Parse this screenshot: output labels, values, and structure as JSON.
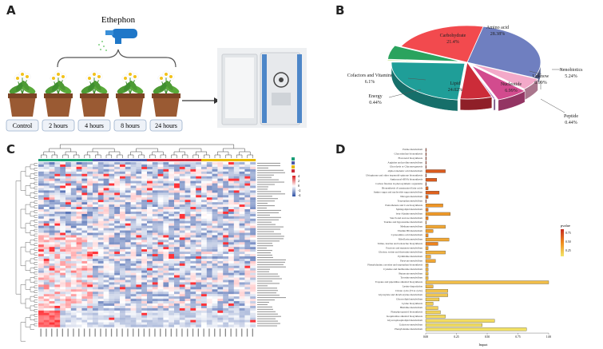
{
  "panels": {
    "a": {
      "letter": "A",
      "title": "Ethephon",
      "timepoints": [
        "Control",
        "2 hours",
        "4 hours",
        "8 hours",
        "24 hours"
      ]
    },
    "b": {
      "letter": "B",
      "chart_data": {
        "type": "pie",
        "slices": [
          {
            "name": "Amino acid",
            "value": 28.38,
            "label": "28.38%",
            "color": "#6f7fc0"
          },
          {
            "name": "Xenobiotics",
            "value": 5.24,
            "label": "5.24%",
            "color": "#f3a9c9"
          },
          {
            "name": "Unknow",
            "value": 6.99,
            "label": "6.99%",
            "color": "#d24b8e"
          },
          {
            "name": "Peptide",
            "value": 0.44,
            "label": "0.44%",
            "color": "#b07cc0"
          },
          {
            "name": "Nucleotide",
            "value": 6.99,
            "label": "6.99%",
            "color": "#cc2c39"
          },
          {
            "name": "Lipid",
            "value": 24.02,
            "label": "24.02%",
            "color": "#1f9e98"
          },
          {
            "name": "Energy",
            "value": 0.44,
            "label": "0.44%",
            "color": "#9fd03d"
          },
          {
            "name": "Cofactors and Vitamins",
            "value": 6.1,
            "label": "6.1%",
            "color": "#2aa35e"
          },
          {
            "name": "Carbohydrate",
            "value": 21.4,
            "label": "21.4%",
            "color": "#f24a4e"
          }
        ]
      }
    },
    "c": {
      "letter": "C",
      "legend_ticks": [
        "4",
        "2",
        "0",
        "-2",
        "-4"
      ]
    },
    "d": {
      "letter": "D",
      "chart_data": {
        "type": "bar",
        "orientation": "horizontal",
        "xlabel": "Impact",
        "xlim": [
          0,
          1
        ],
        "xticks": [
          "0.00",
          "0.25",
          "0.50",
          "0.75",
          "1.00"
        ],
        "colorbar_title": "pvalue",
        "colorbar_ticks": [
          "0.75",
          "0.50",
          "0.25"
        ],
        "categories": [
          "Purine metabolism",
          "Glucosinolate biosynthesis",
          "Flavonoid biosynthesis",
          "Arginine and proline metabolism",
          "Glycolysis or Gluconeogenesis",
          "alpha-Linolenic acid metabolism",
          "Ubiquinone and other terpenoid-quinone biosynthesis",
          "Aminoacyl-tRNA biosynthesis",
          "Carbon fixation in photosynthetic organisms",
          "Biosynthesis of unsaturated fatty acids",
          "Amino sugar and nucleotide sugar metabolism",
          "Nitrogen metabolism",
          "Tryptophan metabolism",
          "Pantothenate and CoA biosynthesis",
          "Sphingolipid metabolism",
          "beta-Alanine metabolism",
          "Starch and sucrose metabolism",
          "Taurine and hypotaurine metabolism",
          "Methane metabolism",
          "Vitamin B6 metabolism",
          "Cyanoamino acid metabolism",
          "Riboflavin metabolism",
          "Valine, leucine and isoleucine biosynthesis",
          "Fructose and mannose metabolism",
          "Glycine, serine and threonine metabolism",
          "Pyrimidine metabolism",
          "Pyruvate metabolism",
          "Phenylalanine, tyrosine and tryptophan biosynthesis",
          "Cysteine and methionine metabolism",
          "Butanoate metabolism",
          "Tyrosine metabolism",
          "Tropane and piperidine alkaloid biosynthesis",
          "Lysine degradation",
          "Citrate cycle (TCA cycle)",
          "Glyoxylate and dicarboxylate metabolism",
          "Glycerolipid metabolism",
          "Lysine biosynthesis",
          "Histidine metabolism",
          "Phenylpropanoid biosynthesis",
          "Isoquinoline alkaloid biosynthesis",
          "Glycerophospholipid metabolism",
          "Galactose metabolism",
          "Phenylalanine metabolism"
        ],
        "values": [
          0.0,
          0.0,
          0.0,
          0.0,
          0.0,
          0.16,
          0.0,
          0.09,
          0.0,
          0.02,
          0.11,
          0.02,
          0.0,
          0.14,
          0.02,
          0.2,
          0.02,
          0.0,
          0.16,
          0.06,
          0.02,
          0.19,
          0.1,
          0.02,
          0.16,
          0.04,
          0.08,
          0.02,
          0.02,
          0.02,
          0.02,
          1.0,
          0.06,
          0.18,
          0.18,
          0.11,
          0.06,
          0.1,
          0.12,
          0.16,
          0.56,
          0.46,
          0.82
        ],
        "pvalues": [
          0.9,
          0.9,
          0.9,
          0.9,
          0.9,
          0.75,
          0.9,
          0.75,
          0.9,
          0.7,
          0.72,
          0.7,
          0.9,
          0.45,
          0.6,
          0.42,
          0.55,
          0.5,
          0.35,
          0.4,
          0.5,
          0.35,
          0.55,
          0.4,
          0.3,
          0.3,
          0.35,
          0.3,
          0.3,
          0.25,
          0.25,
          0.22,
          0.25,
          0.2,
          0.18,
          0.15,
          0.15,
          0.12,
          0.1,
          0.08,
          0.06,
          0.05,
          0.03
        ]
      }
    }
  }
}
